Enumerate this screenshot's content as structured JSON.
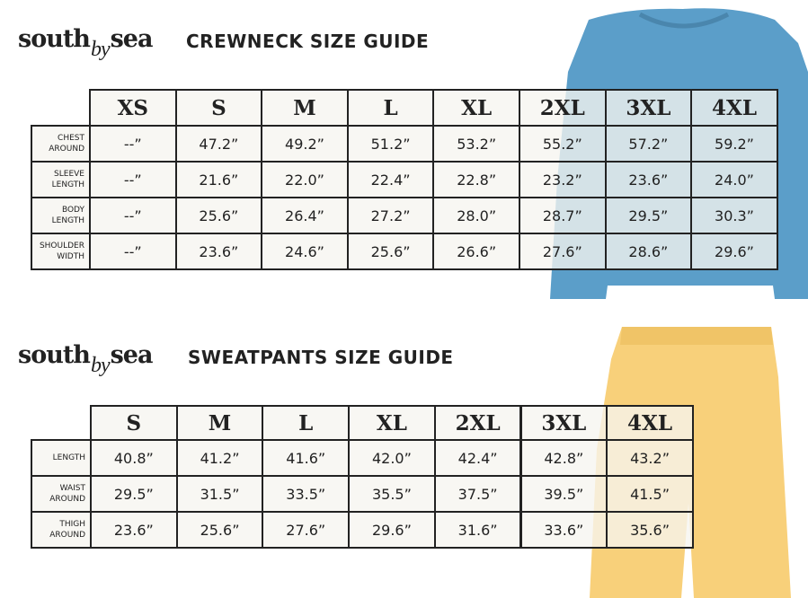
{
  "crewneck": {
    "brand": [
      "south",
      "by",
      "sea"
    ],
    "title": "CREWNECK SIZE GUIDE",
    "sizes": [
      "XS",
      "S",
      "M",
      "L",
      "XL",
      "2XL",
      "3XL",
      "4XL"
    ],
    "rows": [
      {
        "label": "CHEST AROUND",
        "values": [
          "--”",
          "47.2”",
          "49.2”",
          "51.2”",
          "53.2”",
          "55.2”",
          "57.2”",
          "59.2”"
        ]
      },
      {
        "label": "SLEEVE LENGTH",
        "values": [
          "--”",
          "21.6”",
          "22.0”",
          "22.4”",
          "22.8”",
          "23.2”",
          "23.6”",
          "24.0”"
        ]
      },
      {
        "label": "BODY LENGTH",
        "values": [
          "--”",
          "25.6”",
          "26.4”",
          "27.2”",
          "28.0”",
          "28.7”",
          "29.5”",
          "30.3”"
        ]
      },
      {
        "label": "SHOULDER WIDTH",
        "values": [
          "--”",
          "23.6”",
          "24.6”",
          "25.6”",
          "26.6”",
          "27.6”",
          "28.6”",
          "29.6”"
        ]
      }
    ]
  },
  "sweatpants": {
    "brand": [
      "south",
      "by",
      "sea"
    ],
    "title": "SWEATPANTS SIZE GUIDE",
    "sizes": [
      "S",
      "M",
      "L",
      "XL",
      "2XL",
      "3XL",
      "4XL"
    ],
    "rows": [
      {
        "label": "LENGTH",
        "values": [
          "40.8”",
          "41.2”",
          "41.6”",
          "42.0”",
          "42.4”",
          "42.8”",
          "43.2”"
        ]
      },
      {
        "label": "WAIST AROUND",
        "values": [
          "29.5”",
          "31.5”",
          "33.5”",
          "35.5”",
          "37.5”",
          "39.5”",
          "41.5”"
        ]
      },
      {
        "label": "THIGH AROUND",
        "values": [
          "23.6”",
          "25.6”",
          "27.6”",
          "29.6”",
          "31.6”",
          "33.6”",
          "35.6”"
        ]
      }
    ]
  }
}
